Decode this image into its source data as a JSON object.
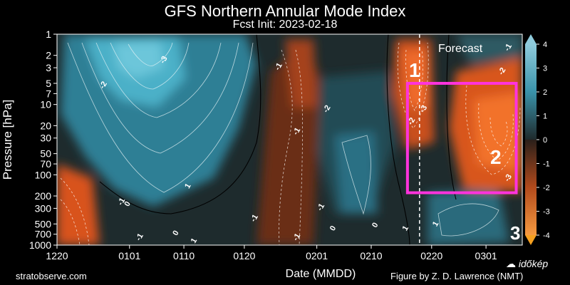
{
  "chart_data": {
    "type": "heatmap",
    "title": "GFS Northern Annular Mode Index",
    "subtitle": "Fcst Init: 2023-02-18",
    "xlabel": "Date (MMDD)",
    "ylabel": "Pressure [hPa]",
    "x_ticks": [
      "1220",
      "0101",
      "0110",
      "0120",
      "0201",
      "0210",
      "0220",
      "0301"
    ],
    "x_tick_days": [
      0,
      12,
      21,
      31,
      43,
      52,
      62,
      71
    ],
    "x_range_days": [
      0,
      77
    ],
    "forecast_start_day": 60,
    "y_ticks": [
      1,
      2,
      3,
      5,
      7,
      10,
      20,
      30,
      50,
      70,
      100,
      200,
      300,
      500,
      700,
      1000
    ],
    "y_range": [
      1,
      1000
    ],
    "colorbar": {
      "ticks": [
        4,
        3,
        2,
        1,
        0,
        -1,
        -2,
        -3,
        -4
      ],
      "range": [
        -4,
        4
      ]
    },
    "annotations": {
      "forecast": "Forecast",
      "marker1": "1",
      "marker2": "2",
      "marker3": "3"
    },
    "contour_labels": [
      "-3",
      "-2",
      "-1",
      "1",
      "-1",
      "0",
      "-2",
      "-1",
      "0",
      "-1",
      "-1",
      "-1",
      "0",
      "1",
      "0",
      "-2",
      "-3",
      "1",
      "1",
      "-2",
      "-1",
      "-3",
      "-1"
    ],
    "highlight_box_days": [
      58,
      76
    ],
    "highlight_box_pressure": [
      5,
      180
    ]
  },
  "footer": {
    "left": "stratobserve.com",
    "right": "Figure by Z. D. Lawrence (NMT)"
  },
  "watermark": "időkép",
  "colors": {
    "background": "#000000",
    "negative": "#2f8fa6",
    "positive": "#e85a20",
    "highlight": "#ff33dd"
  }
}
